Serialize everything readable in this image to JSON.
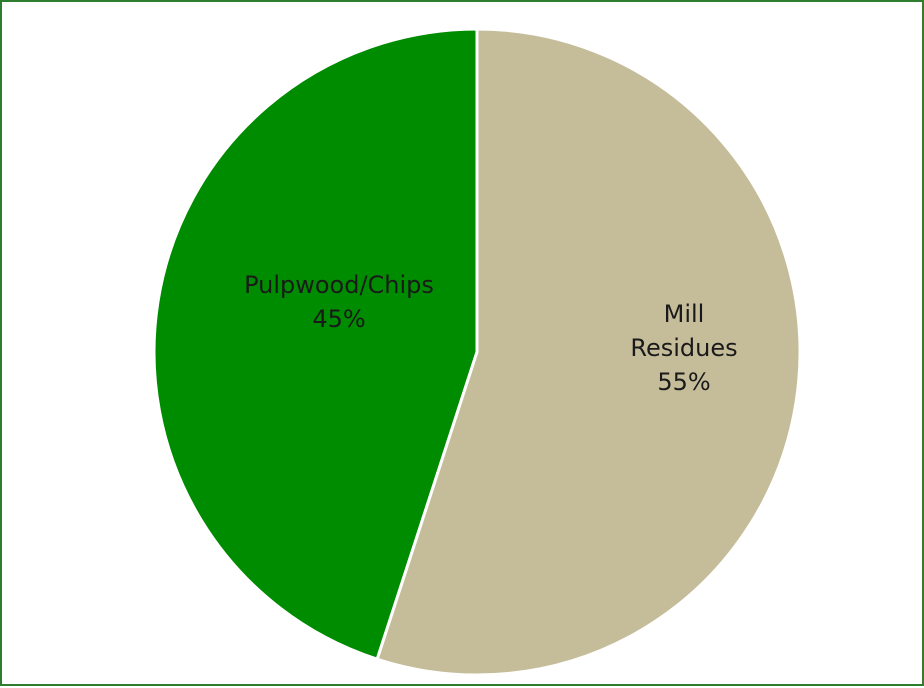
{
  "chart_data": {
    "type": "pie",
    "categories": [
      "Pulpwood/Chips",
      "Mill Residues"
    ],
    "values": [
      45,
      55
    ],
    "slices": [
      {
        "label_lines": [
          "Pulpwood/Chips"
        ],
        "value_label": "45%",
        "value": 45,
        "color": "#008c00"
      },
      {
        "label_lines": [
          "Mill",
          "Residues"
        ],
        "value_label": "55%",
        "value": 55,
        "color": "#c5bd9a"
      }
    ],
    "slice_order": "counterclockwise",
    "start_angle": "top",
    "slice_border_color": "#ffffff",
    "frame_color": "#2e7d2e",
    "legend": "none"
  }
}
